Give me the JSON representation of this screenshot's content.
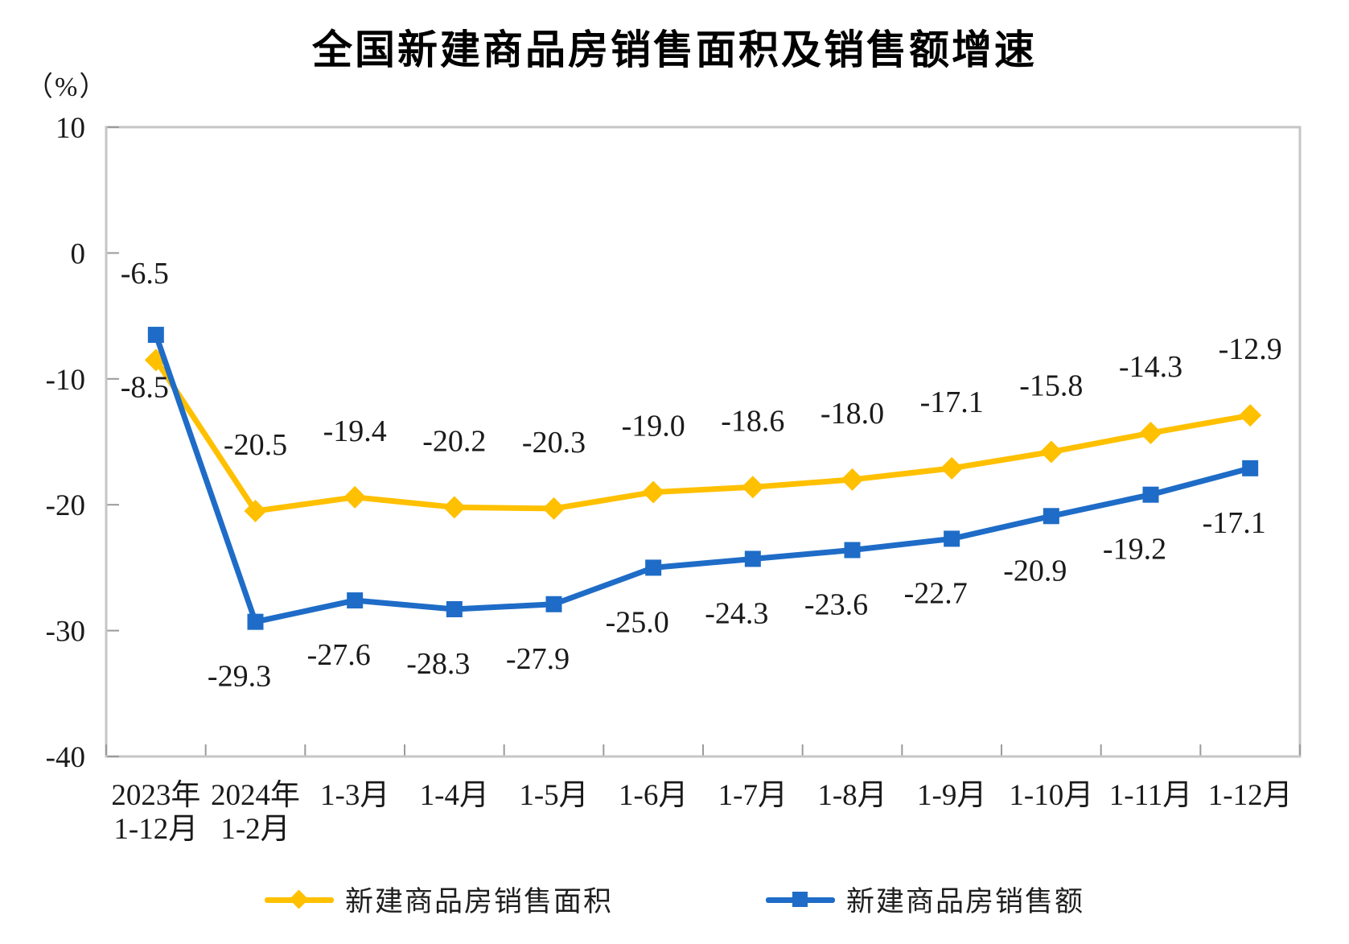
{
  "title": "全国新建商品房销售面积及销售额增速",
  "unit_label": "（%）",
  "legend": {
    "items": [
      {
        "label": "新建商品房销售面积",
        "color": "#FFC000",
        "marker": "diamond"
      },
      {
        "label": "新建商品房销售额",
        "color": "#1E6CC7",
        "marker": "square"
      }
    ]
  },
  "chart_data": {
    "type": "line",
    "title": "全国新建商品房销售面积及销售额增速",
    "ylabel": "（%）",
    "ylim": [
      -40,
      10
    ],
    "yticks": [
      10,
      0,
      -10,
      -20,
      -30,
      -40
    ],
    "grid": false,
    "legend_position": "bottom",
    "categories": [
      [
        "2023年",
        "1-12月"
      ],
      [
        "2024年",
        "1-2月"
      ],
      "1-3月",
      "1-4月",
      "1-5月",
      "1-6月",
      "1-7月",
      "1-8月",
      "1-9月",
      "1-10月",
      "1-11月",
      "1-12月"
    ],
    "series": [
      {
        "name": "新建商品房销售面积",
        "color": "#FFC000",
        "marker": "diamond",
        "values": [
          -8.5,
          -20.5,
          -19.4,
          -20.2,
          -20.3,
          -19.0,
          -18.6,
          -18.0,
          -17.1,
          -15.8,
          -14.3,
          -12.9
        ],
        "labels": [
          "-8.5",
          "-20.5",
          "-19.4",
          "-20.2",
          "-20.3",
          "-19.0",
          "-18.6",
          "-18.0",
          "-17.1",
          "-15.8",
          "-14.3",
          "-12.9"
        ]
      },
      {
        "name": "新建商品房销售额",
        "color": "#1E6CC7",
        "marker": "square",
        "values": [
          -6.5,
          -29.3,
          -27.6,
          -28.3,
          -27.9,
          -25.0,
          -24.3,
          -23.6,
          -22.7,
          -20.9,
          -19.2,
          -17.1
        ],
        "labels": [
          "-6.5",
          "-29.3",
          "-27.6",
          "-28.3",
          "-27.9",
          "-25.0",
          "-24.3",
          "-23.6",
          "-22.7",
          "-20.9",
          "-19.2",
          "-17.1"
        ]
      }
    ]
  }
}
